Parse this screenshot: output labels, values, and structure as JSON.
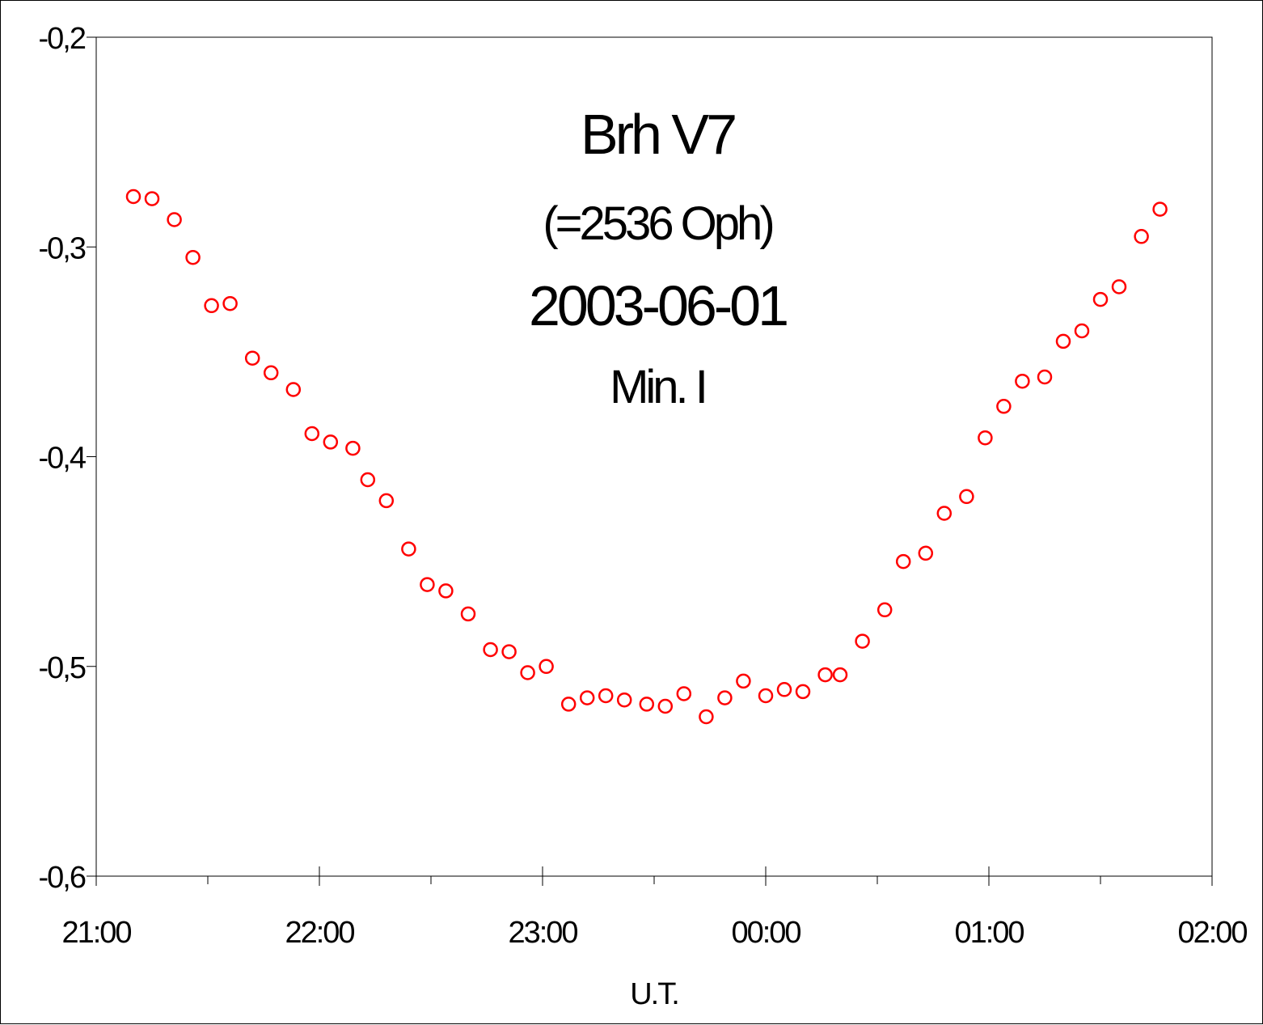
{
  "chart_data": {
    "type": "scatter",
    "title_lines": [
      "Brh V7",
      "(=2536 Oph)",
      "2003-06-01",
      "Min. I"
    ],
    "xlabel": "U.T.",
    "ylabel": "",
    "xlim": [
      "21:00",
      "02:00"
    ],
    "ylim": [
      -0.6,
      -0.2
    ],
    "x_ticks": [
      "21:00",
      "22:00",
      "23:00",
      "00:00",
      "01:00",
      "02:00"
    ],
    "y_ticks": [
      "-0,2",
      "-0,3",
      "-0,4",
      "-0,5",
      "-0,6"
    ],
    "y_tick_values": [
      -0.2,
      -0.3,
      -0.4,
      -0.5,
      -0.6
    ],
    "grid": false,
    "legend": "none",
    "marker_color": "#ff0000",
    "series": [
      {
        "x": [
          "21:10",
          "21:15",
          "21:21",
          "21:26",
          "21:31",
          "21:36",
          "21:42",
          "21:47",
          "21:53",
          "21:58",
          "22:03",
          "22:09",
          "22:13",
          "22:18",
          "22:24",
          "22:29",
          "22:34",
          "22:40",
          "22:46",
          "22:51",
          "22:56",
          "23:01",
          "23:07",
          "23:12",
          "23:17",
          "23:22",
          "23:28",
          "23:33",
          "23:38",
          "23:44",
          "23:49",
          "23:54",
          "00:00",
          "00:05",
          "00:10",
          "00:16",
          "00:20",
          "00:26",
          "00:32",
          "00:37",
          "00:43",
          "00:48",
          "00:54",
          "00:59",
          "01:04",
          "01:09",
          "01:15",
          "01:20",
          "01:25",
          "01:30",
          "01:35",
          "01:41",
          "01:46"
        ],
        "y": [
          -0.276,
          -0.277,
          -0.287,
          -0.305,
          -0.328,
          -0.327,
          -0.353,
          -0.36,
          -0.368,
          -0.389,
          -0.393,
          -0.396,
          -0.411,
          -0.421,
          -0.444,
          -0.461,
          -0.464,
          -0.475,
          -0.492,
          -0.493,
          -0.503,
          -0.5,
          -0.518,
          -0.515,
          -0.514,
          -0.516,
          -0.518,
          -0.519,
          -0.513,
          -0.524,
          -0.515,
          -0.507,
          -0.514,
          -0.511,
          -0.512,
          -0.504,
          -0.504,
          -0.488,
          -0.473,
          -0.45,
          -0.446,
          -0.427,
          -0.419,
          -0.391,
          -0.376,
          -0.364,
          -0.362,
          -0.345,
          -0.34,
          -0.325,
          -0.319,
          -0.295,
          -0.282
        ]
      }
    ]
  }
}
